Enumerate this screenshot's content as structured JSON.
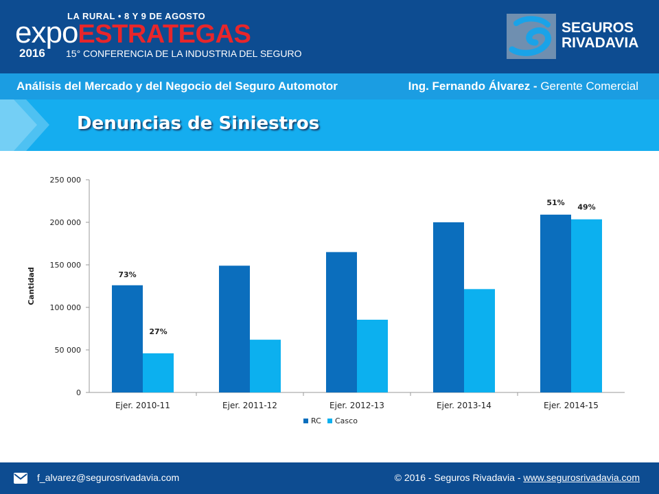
{
  "header": {
    "event_line": "LA RURAL • 8 Y 9 DE AGOSTO",
    "expo_word_1": "expo",
    "expo_word_2": "ESTRATEGAS",
    "year": "2016",
    "conference": "15° CONFERENCIA DE LA INDUSTRIA DEL SEGURO",
    "brand_line_1": "SEGUROS",
    "brand_line_2": "RIVADAVIA"
  },
  "subheader": {
    "left": "Análisis del Mercado y del Negocio del Seguro Automotor",
    "right_name": "Ing. Fernando Álvarez -",
    "right_role": "Gerente Comercial"
  },
  "title": "Denuncias de Siniestros",
  "chart_data": {
    "type": "bar",
    "categories": [
      "Ejer. 2010-11",
      "Ejer. 2011-12",
      "Ejer. 2012-13",
      "Ejer. 2013-14",
      "Ejer. 2014-15"
    ],
    "series": [
      {
        "name": "RC",
        "values": [
          126000,
          149000,
          165000,
          200000,
          209000
        ],
        "color": "#0b6ebd",
        "labels": [
          "73%",
          "",
          "",
          "",
          "51%"
        ]
      },
      {
        "name": "Casco",
        "values": [
          46000,
          62000,
          85500,
          121500,
          203500
        ],
        "color": "#0cb0ef",
        "labels": [
          "27%",
          "",
          "",
          "",
          "49%"
        ]
      }
    ],
    "ylabel": "Cantidad",
    "xlabel": "",
    "ylim": [
      0,
      250000
    ],
    "yticks": [
      0,
      50000,
      100000,
      150000,
      200000,
      250000
    ],
    "ytick_labels": [
      "0",
      "50 000",
      "100 000",
      "150 000",
      "200 000",
      "250 000"
    ],
    "legend": "bottom",
    "grid": false
  },
  "footer": {
    "email": "f_alvarez@segurosrivadavia.com",
    "copyright": "© 2016 - Seguros Rivadavia -",
    "website": "www.segurosrivadavia.com"
  },
  "colors": {
    "header_bg": "#0d4c91",
    "subheader_bg": "#1b9de2",
    "title_bg": "#15adef",
    "expo_red": "#e8262b"
  }
}
